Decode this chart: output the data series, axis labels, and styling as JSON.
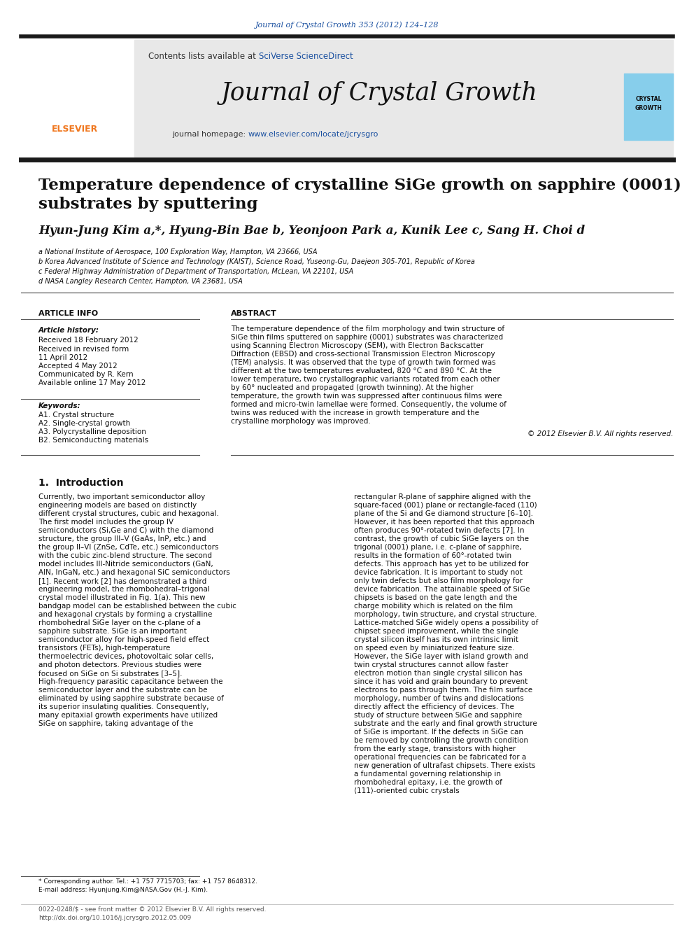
{
  "journal_ref": "Journal of Crystal Growth 353 (2012) 124–128",
  "journal_name": "Journal of Crystal Growth",
  "contents_line": "Contents lists available at SciVerse ScienceDirect",
  "homepage_line": "journal homepage: www.elsevier.com/locate/jcrysgro",
  "title_line1": "Temperature dependence of crystalline SiGe growth on sapphire (0001)",
  "title_line2": "substrates by sputtering",
  "authors_line": "Hyun-Jung Kim a,*, Hyung-Bin Bae b, Yeonjoon Park a, Kunik Lee c, Sang H. Choi d",
  "affil_a": "a National Institute of Aerospace, 100 Exploration Way, Hampton, VA 23666, USA",
  "affil_b": "b Korea Advanced Institute of Science and Technology (KAIST), Science Road, Yuseong-Gu, Daejeon 305-701, Republic of Korea",
  "affil_c": "c Federal Highway Administration of Department of Transportation, McLean, VA 22101, USA",
  "affil_d": "d NASA Langley Research Center, Hampton, VA 23681, USA",
  "article_info_header": "ARTICLE INFO",
  "abstract_header": "ABSTRACT",
  "article_history_label": "Article history:",
  "received": "Received 18 February 2012",
  "received_revised": "Received in revised form",
  "revised_date": "11 April 2012",
  "accepted": "Accepted 4 May 2012",
  "communicated": "Communicated by R. Kern",
  "available": "Available online 17 May 2012",
  "keywords_label": "Keywords:",
  "kw1": "A1. Crystal structure",
  "kw2": "A2. Single-crystal growth",
  "kw3": "A3. Polycrystalline deposition",
  "kw4": "B2. Semiconducting materials",
  "abstract_text": "The temperature dependence of the film morphology and twin structure of SiGe thin films sputtered on sapphire (0001) substrates was characterized using Scanning Electron Microscopy (SEM), with Electron Backscatter Diffraction (EBSD) and cross-sectional Transmission Electron Microscopy (TEM) analysis. It was observed that the type of growth twin formed was different at the two temperatures evaluated, 820 °C and 890 °C. At the lower temperature, two crystallographic variants rotated from each other by 60° nucleated and propagated (growth twinning). At the higher temperature, the growth twin was suppressed after continuous films were formed and micro-twin lamellae were formed. Consequently, the volume of twins was reduced with the increase in growth temperature and the crystalline morphology was improved.",
  "copyright": "© 2012 Elsevier B.V. All rights reserved.",
  "intro_header": "1.  Introduction",
  "intro_col1": "Currently, two important semiconductor alloy engineering models are based on distinctly different crystal structures, cubic and hexagonal. The first model includes the group IV semiconductors (Si,Ge and C) with the diamond structure, the group III–V (GaAs, InP, etc.) and the group II–VI (ZnSe, CdTe, etc.) semiconductors with the cubic zinc-blend structure. The second model includes III-Nitride semiconductors (GaN, AlN, InGaN, etc.) and hexagonal SiC semiconductors [1]. Recent work [2] has demonstrated a third engineering model, the rhombohedral–trigonal crystal model illustrated in Fig. 1(a). This new bandgap model can be established between the cubic and hexagonal crystals by forming a crystalline rhombohedral SiGe layer on the c-plane of a sapphire substrate.    SiGe is an important semiconductor alloy for high-speed field effect transistors (FETs), high-temperature thermoelectric devices, photovoltaic solar cells, and photon detectors. Previous studies were focused on SiGe on Si substrates [3–5]. High-frequency parasitic capacitance between the semiconductor layer and the substrate can be eliminated by using sapphire substrate because of its superior insulating qualities. Consequently, many epitaxial growth experiments have utilized SiGe on sapphire, taking advantage of the",
  "intro_col2": "rectangular R-plane of sapphire aligned with the square-faced (001) plane or rectangle-faced (110) plane of the Si and Ge diamond structure [6–10]. However, it has been reported that this approach often produces 90°-rotated twin defects [7]. In contrast, the growth of cubic SiGe layers on the trigonal (0001) plane, i.e. c-plane of sapphire, results in the formation of 60°-rotated twin defects. This approach has yet to be utilized for device fabrication.    It is important to study not only twin defects but also film morphology for device fabrication. The attainable speed of SiGe chipsets is based on the gate length and the charge mobility which is related on the film morphology, twin structure, and crystal structure. Lattice-matched SiGe widely opens a possibility of chipset speed improvement, while the single crystal silicon itself has its own intrinsic limit on speed even by miniaturized feature size. However, the SiGe layer with island growth and twin crystal structures cannot allow faster electron motion than single crystal silicon has since it has void and grain boundary to prevent electrons to pass through them. The film surface morphology, number of twins and dislocations directly affect the efficiency of devices. The study of structure between SiGe and sapphire substrate and the early and final growth structure of SiGe is important. If the defects in SiGe can be removed by controlling the growth condition from the early stage, transistors with higher operational frequencies can be fabricated for a new generation of ultrafast chipsets.    There exists a fundamental governing relationship in rhombohedral epitaxy, i.e. the growth of ⟨111⟩-oriented cubic crystals",
  "footnote1": "* Corresponding author. Tel.: +1 757 7715703; fax: +1 757 8648312.",
  "footnote2": "E-mail address: Hyunjung.Kim@NASA.Gov (H.-J. Kim).",
  "footer1": "0022-0248/$ - see front matter © 2012 Elsevier B.V. All rights reserved.",
  "footer2": "http://dx.doi.org/10.1016/j.jcrysgro.2012.05.009",
  "bg_color": "#ffffff",
  "header_bg": "#e8e8e8",
  "dark_bar_color": "#1a1a1a",
  "blue_link": "#1a50a0",
  "orange_color": "#f07820",
  "journal_ref_color": "#1a50a0",
  "sky_blue": "#87ceeb"
}
